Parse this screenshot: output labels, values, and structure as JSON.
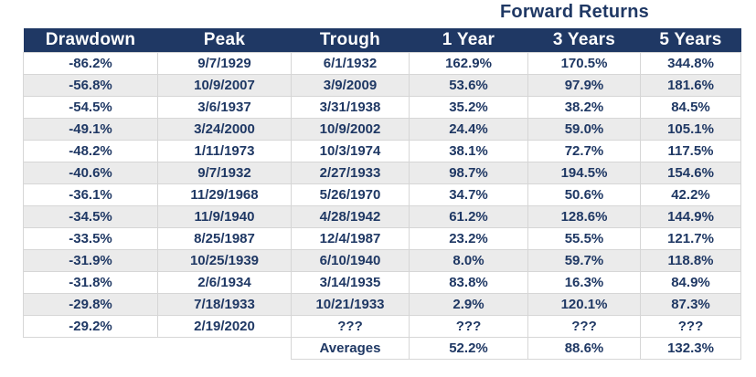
{
  "title": "Forward Returns",
  "chart_data": {
    "type": "table",
    "title": "Forward Returns",
    "title_spans_columns": [
      "1 Year",
      "3 Years",
      "5 Years"
    ],
    "columns": [
      "Drawdown",
      "Peak",
      "Trough",
      "1 Year",
      "3 Years",
      "5 Years"
    ],
    "rows": [
      [
        "-86.2%",
        "9/7/1929",
        "6/1/1932",
        "162.9%",
        "170.5%",
        "344.8%"
      ],
      [
        "-56.8%",
        "10/9/2007",
        "3/9/2009",
        "53.6%",
        "97.9%",
        "181.6%"
      ],
      [
        "-54.5%",
        "3/6/1937",
        "3/31/1938",
        "35.2%",
        "38.2%",
        "84.5%"
      ],
      [
        "-49.1%",
        "3/24/2000",
        "10/9/2002",
        "24.4%",
        "59.0%",
        "105.1%"
      ],
      [
        "-48.2%",
        "1/11/1973",
        "10/3/1974",
        "38.1%",
        "72.7%",
        "117.5%"
      ],
      [
        "-40.6%",
        "9/7/1932",
        "2/27/1933",
        "98.7%",
        "194.5%",
        "154.6%"
      ],
      [
        "-36.1%",
        "11/29/1968",
        "5/26/1970",
        "34.7%",
        "50.6%",
        "42.2%"
      ],
      [
        "-34.5%",
        "11/9/1940",
        "4/28/1942",
        "61.2%",
        "128.6%",
        "144.9%"
      ],
      [
        "-33.5%",
        "8/25/1987",
        "12/4/1987",
        "23.2%",
        "55.5%",
        "121.7%"
      ],
      [
        "-31.9%",
        "10/25/1939",
        "6/10/1940",
        "8.0%",
        "59.7%",
        "118.8%"
      ],
      [
        "-31.8%",
        "2/6/1934",
        "3/14/1935",
        "83.8%",
        "16.3%",
        "84.9%"
      ],
      [
        "-29.8%",
        "7/18/1933",
        "10/21/1933",
        "2.9%",
        "120.1%",
        "87.3%"
      ],
      [
        "-29.2%",
        "2/19/2020",
        "???",
        "???",
        "???",
        "???"
      ]
    ],
    "footer_row": [
      "",
      "",
      "Averages",
      "52.2%",
      "88.6%",
      "132.3%"
    ]
  },
  "colors": {
    "header_bg": "#1f3864",
    "text_navy": "#1f3864",
    "alt_row_bg": "#ebebeb",
    "row_bg": "#ffffff",
    "border": "#d6d6d6",
    "header_text": "#ffffff"
  }
}
